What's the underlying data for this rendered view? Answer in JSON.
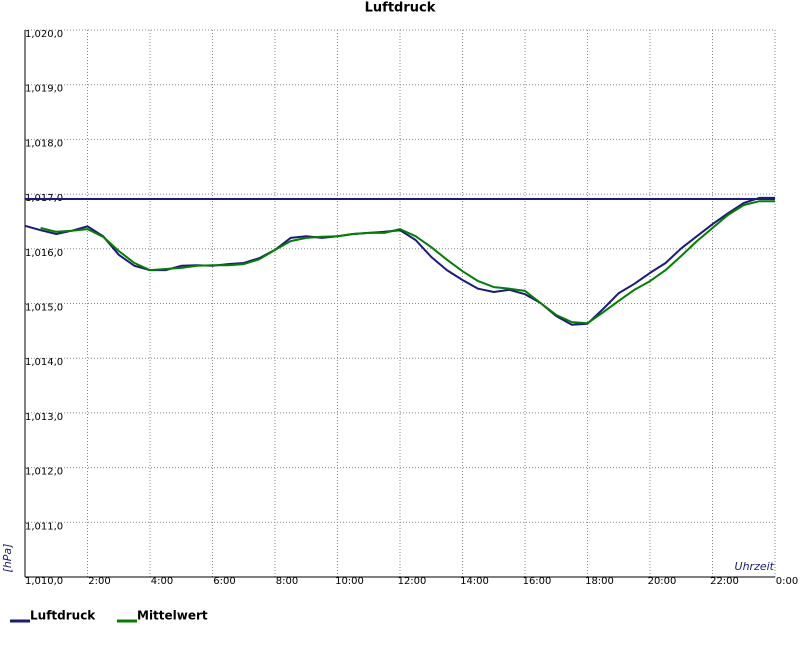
{
  "chart_data": {
    "type": "line",
    "title": "Luftdruck",
    "y_label": "[hPa]",
    "x_label": "Uhrzeit",
    "x": [
      0,
      0.5,
      1,
      1.5,
      2,
      2.5,
      3,
      3.5,
      4,
      4.5,
      5,
      5.5,
      6,
      6.5,
      7,
      7.5,
      8,
      8.5,
      9,
      9.5,
      10,
      10.5,
      11,
      11.5,
      12,
      12.5,
      13,
      13.5,
      14,
      14.5,
      15,
      15.5,
      16,
      16.5,
      17,
      17.5,
      18,
      18.5,
      19,
      19.5,
      20,
      20.5,
      21,
      21.5,
      22,
      22.5,
      23,
      23.5,
      24
    ],
    "series": [
      {
        "name": "Luftdruck",
        "color": "#1a1a80",
        "values": [
          1016.42,
          1016.34,
          1016.27,
          1016.33,
          1016.41,
          1016.23,
          1015.89,
          1015.69,
          1015.61,
          1015.61,
          1015.69,
          1015.7,
          1015.69,
          1015.72,
          1015.74,
          1015.83,
          1015.98,
          1016.2,
          1016.23,
          1016.2,
          1016.23,
          1016.27,
          1016.29,
          1016.31,
          1016.34,
          1016.16,
          1015.85,
          1015.61,
          1015.43,
          1015.27,
          1015.21,
          1015.25,
          1015.17,
          1015.01,
          1014.77,
          1014.61,
          1014.63,
          1014.9,
          1015.19,
          1015.36,
          1015.56,
          1015.74,
          1016.01,
          1016.23,
          1016.45,
          1016.65,
          1016.84,
          1016.93,
          1016.93
        ]
      },
      {
        "name": "Mittelwert",
        "color": "#008000",
        "values": [
          null,
          1016.38,
          1016.31,
          1016.33,
          1016.36,
          1016.22,
          1015.96,
          1015.74,
          1015.61,
          1015.63,
          1015.65,
          1015.69,
          1015.7,
          1015.7,
          1015.72,
          1015.81,
          1015.98,
          1016.14,
          1016.2,
          1016.22,
          1016.23,
          1016.27,
          1016.29,
          1016.29,
          1016.36,
          1016.23,
          1016.03,
          1015.8,
          1015.59,
          1015.41,
          1015.3,
          1015.27,
          1015.23,
          1015.01,
          1014.79,
          1014.66,
          1014.64,
          1014.84,
          1015.05,
          1015.25,
          1015.41,
          1015.61,
          1015.87,
          1016.14,
          1016.38,
          1016.62,
          1016.8,
          1016.87,
          1016.87
        ]
      }
    ],
    "reference_line": {
      "value": 1016.91,
      "color": "#1a1a80"
    },
    "xlim": [
      0,
      24
    ],
    "xticks": [
      {
        "value": 2,
        "label": "2:00"
      },
      {
        "value": 4,
        "label": "4:00"
      },
      {
        "value": 6,
        "label": "6:00"
      },
      {
        "value": 8,
        "label": "8:00"
      },
      {
        "value": 10,
        "label": "10:00"
      },
      {
        "value": 12,
        "label": "12:00"
      },
      {
        "value": 14,
        "label": "14:00"
      },
      {
        "value": 16,
        "label": "16:00"
      },
      {
        "value": 18,
        "label": "18:00"
      },
      {
        "value": 20,
        "label": "20:00"
      },
      {
        "value": 22,
        "label": "22:00"
      },
      {
        "value": 24,
        "label": "0:00"
      }
    ],
    "ylim": [
      1010,
      1020
    ],
    "yticks": [
      {
        "value": 1010,
        "label": "1,010,0"
      },
      {
        "value": 1011,
        "label": "1,011,0"
      },
      {
        "value": 1012,
        "label": "1,012,0"
      },
      {
        "value": 1013,
        "label": "1,013,0"
      },
      {
        "value": 1014,
        "label": "1,014,0"
      },
      {
        "value": 1015,
        "label": "1,015,0"
      },
      {
        "value": 1016,
        "label": "1,016,0"
      },
      {
        "value": 1017,
        "label": "1,017,0"
      },
      {
        "value": 1018,
        "label": "1,018,0"
      },
      {
        "value": 1019,
        "label": "1,019,0"
      },
      {
        "value": 1020,
        "label": "1,020,0"
      }
    ],
    "grid": true
  }
}
